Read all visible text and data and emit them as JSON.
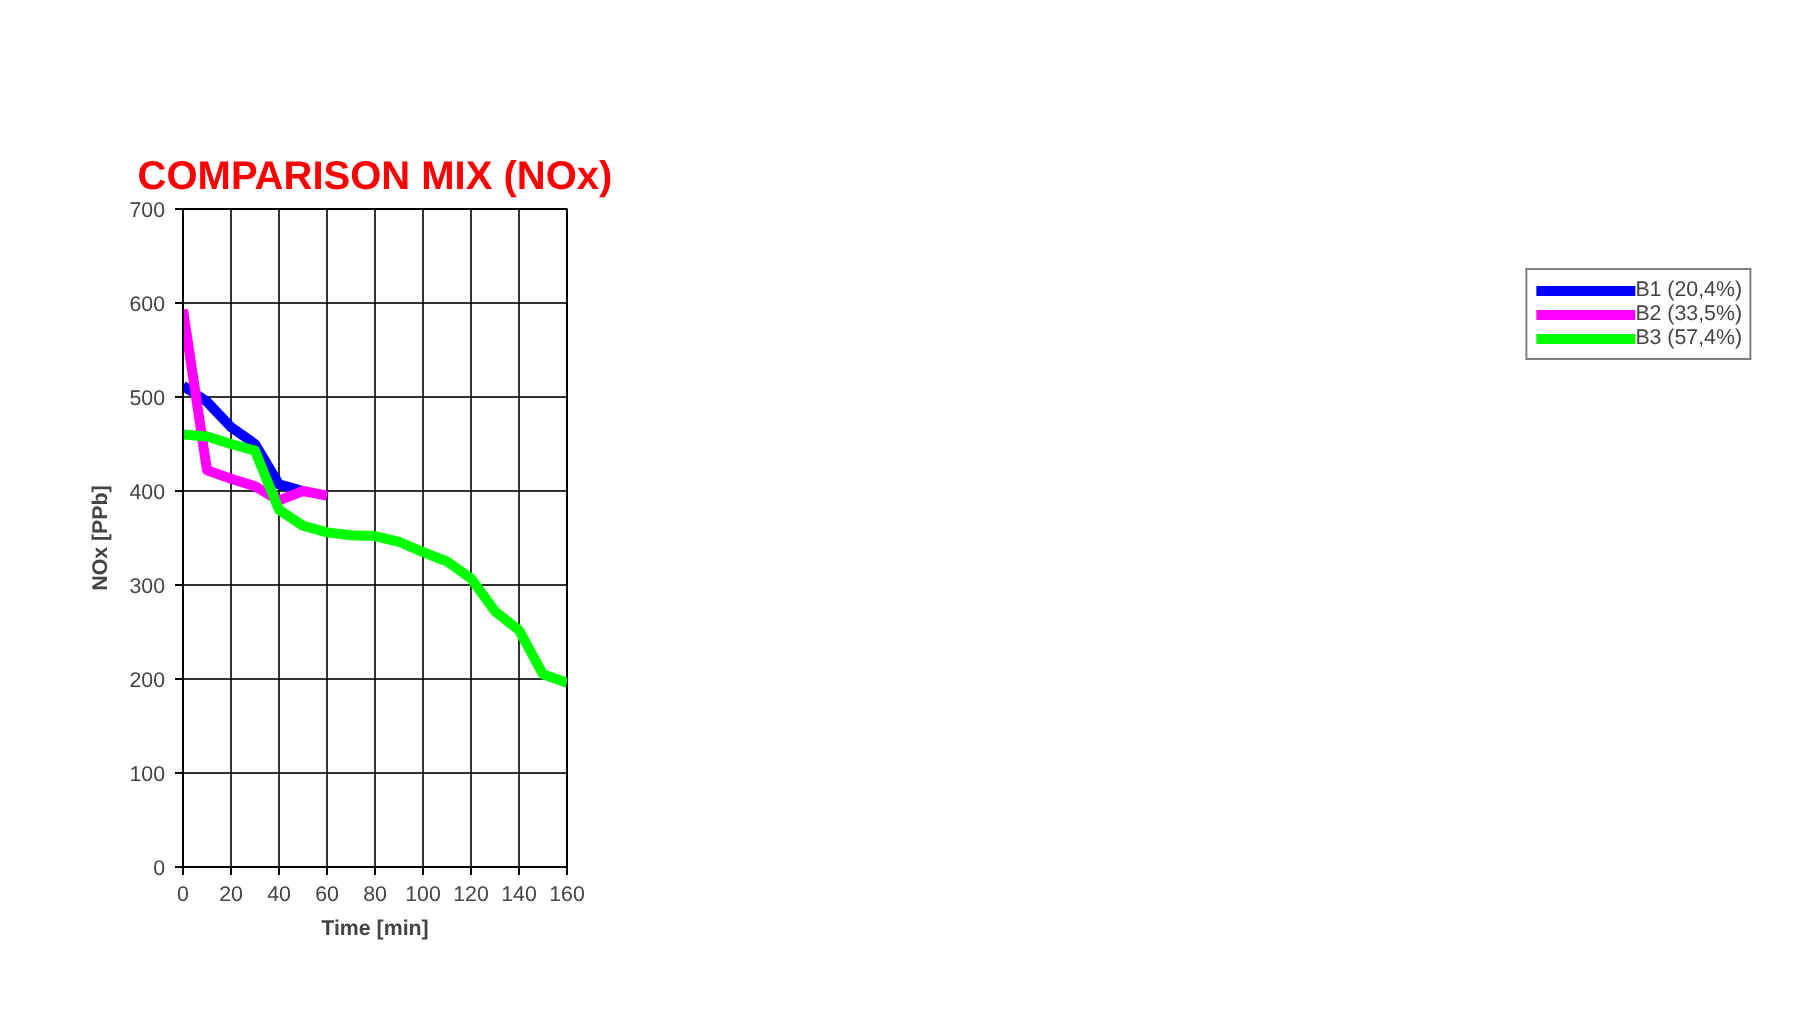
{
  "chart_data": {
    "type": "line",
    "title": "COMPARISON MIX (NOx)",
    "xlabel": "Time [min]",
    "ylabel": "NOx [PPb]",
    "x": [
      0,
      10,
      20,
      30,
      40,
      50,
      60,
      70,
      80,
      90,
      100,
      110,
      120,
      130,
      140,
      150,
      160
    ],
    "series": [
      {
        "name": "B1 (20,4%)",
        "color": "#0000ff",
        "values": [
          512,
          495,
          468,
          450,
          407,
          400,
          null,
          null,
          null,
          null,
          null,
          null,
          null,
          null,
          null,
          null,
          null
        ]
      },
      {
        "name": "B2 (33,5%)",
        "color": "#ff00ff",
        "values": [
          593,
          422,
          413,
          405,
          390,
          400,
          395,
          null,
          null,
          null,
          null,
          null,
          null,
          null,
          null,
          null,
          null
        ]
      },
      {
        "name": "B3 (57,4%)",
        "color": "#00ff00",
        "values": [
          460,
          458,
          450,
          443,
          380,
          363,
          356,
          353,
          352,
          346,
          335,
          325,
          307,
          272,
          252,
          205,
          196
        ]
      }
    ],
    "xlim": [
      0,
      160
    ],
    "xticks": [
      0,
      20,
      40,
      60,
      80,
      100,
      120,
      140,
      160
    ],
    "ylim": [
      0,
      700
    ],
    "yticks": [
      0,
      100,
      200,
      300,
      400,
      500,
      600,
      700
    ],
    "grid": true,
    "legend": "right",
    "marker": "none",
    "line_style": "solid"
  }
}
